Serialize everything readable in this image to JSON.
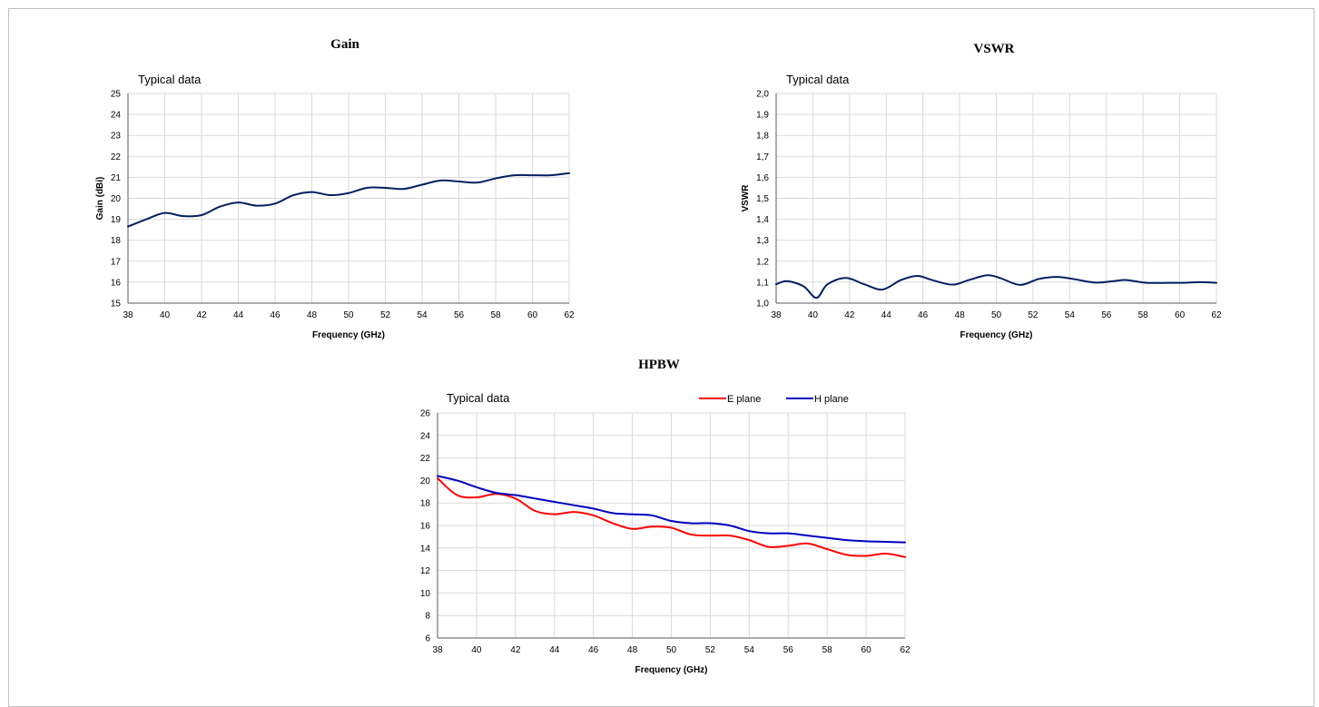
{
  "chart_data": [
    {
      "id": "gain",
      "type": "line",
      "title": "Gain",
      "note": "Typical data",
      "xlabel": "Frequency  (GHz)",
      "ylabel": "Gain  (dBi)",
      "xlim": [
        38,
        62
      ],
      "ylim": [
        15,
        25
      ],
      "xticks": [
        38,
        40,
        42,
        44,
        46,
        48,
        50,
        52,
        54,
        56,
        58,
        60,
        62
      ],
      "yticks": [
        "15",
        "16",
        "17",
        "18",
        "19",
        "20",
        "21",
        "22",
        "23",
        "24",
        "25"
      ],
      "grid": true,
      "series": [
        {
          "color": "#002060",
          "x": [
            38,
            39,
            40,
            41,
            42,
            43,
            44,
            45,
            46,
            47,
            48,
            49,
            50,
            51,
            52,
            53,
            54,
            55,
            56,
            57,
            58,
            59,
            60,
            61,
            62
          ],
          "y": [
            18.65,
            19.0,
            19.3,
            19.15,
            19.2,
            19.6,
            19.8,
            19.65,
            19.75,
            20.15,
            20.3,
            20.15,
            20.25,
            20.5,
            20.5,
            20.45,
            20.65,
            20.85,
            20.8,
            20.75,
            20.95,
            21.1,
            21.1,
            21.1,
            21.2
          ]
        }
      ]
    },
    {
      "id": "vswr",
      "type": "line",
      "title": "VSWR",
      "note": "Typical data",
      "xlabel": "Frequency  (GHz)",
      "ylabel": "VSWR",
      "xlim": [
        38,
        62
      ],
      "ylim": [
        1.0,
        2.0
      ],
      "xticks": [
        38,
        40,
        42,
        44,
        46,
        48,
        50,
        52,
        54,
        56,
        58,
        60,
        62
      ],
      "yticks": [
        "1,0",
        "1,1",
        "1,2",
        "1,3",
        "1,4",
        "1,5",
        "1,6",
        "1,7",
        "1,8",
        "1,9",
        "2,0"
      ],
      "grid": true,
      "series": [
        {
          "color": "#002060",
          "x": [
            38,
            38.6,
            39.5,
            40.2,
            40.8,
            41.8,
            42.8,
            43.8,
            44.8,
            45.7,
            46.5,
            47.6,
            48.5,
            49.5,
            50.2,
            51.3,
            52.3,
            53.3,
            54.2,
            55.4,
            56.4,
            57.1,
            58.2,
            59.4,
            60.2,
            61.1,
            62
          ],
          "y": [
            1.09,
            1.105,
            1.08,
            1.025,
            1.09,
            1.12,
            1.09,
            1.065,
            1.11,
            1.13,
            1.11,
            1.088,
            1.11,
            1.133,
            1.12,
            1.087,
            1.115,
            1.125,
            1.115,
            1.098,
            1.105,
            1.11,
            1.097,
            1.097,
            1.097,
            1.1,
            1.097
          ]
        }
      ]
    },
    {
      "id": "hpbw",
      "type": "line",
      "title": "HPBW",
      "note": "Typical data",
      "xlabel": "Frequency  (GHz)",
      "ylabel": "",
      "xlim": [
        38,
        62
      ],
      "ylim": [
        6,
        26
      ],
      "xticks": [
        38,
        40,
        42,
        44,
        46,
        48,
        50,
        52,
        54,
        56,
        58,
        60,
        62
      ],
      "yticks": [
        "6",
        "8",
        "10",
        "12",
        "14",
        "16",
        "18",
        "20",
        "22",
        "24",
        "26"
      ],
      "grid": true,
      "legend": "top-right",
      "series": [
        {
          "name": "E plane",
          "color": "#ff0000",
          "x": [
            38,
            39,
            40,
            41,
            42,
            43,
            44,
            45,
            46,
            47,
            48,
            49,
            50,
            51,
            52,
            53,
            54,
            55,
            56,
            57,
            58,
            59,
            60,
            61,
            62
          ],
          "y": [
            20.2,
            18.7,
            18.5,
            18.8,
            18.4,
            17.3,
            17.0,
            17.2,
            16.9,
            16.2,
            15.7,
            15.9,
            15.8,
            15.2,
            15.1,
            15.1,
            14.7,
            14.1,
            14.2,
            14.4,
            13.9,
            13.4,
            13.3,
            13.5,
            13.2
          ]
        },
        {
          "name": "H plane",
          "color": "#0000c0",
          "x": [
            38,
            39,
            40,
            41,
            42,
            43,
            44,
            45,
            46,
            47,
            48,
            49,
            50,
            51,
            52,
            53,
            54,
            55,
            56,
            57,
            58,
            59,
            60,
            61,
            62
          ],
          "y": [
            20.4,
            20.0,
            19.4,
            18.9,
            18.7,
            18.4,
            18.1,
            17.8,
            17.5,
            17.1,
            17.0,
            16.9,
            16.4,
            16.2,
            16.2,
            16.0,
            15.5,
            15.3,
            15.3,
            15.1,
            14.9,
            14.7,
            14.6,
            14.55,
            14.5
          ]
        }
      ]
    }
  ]
}
